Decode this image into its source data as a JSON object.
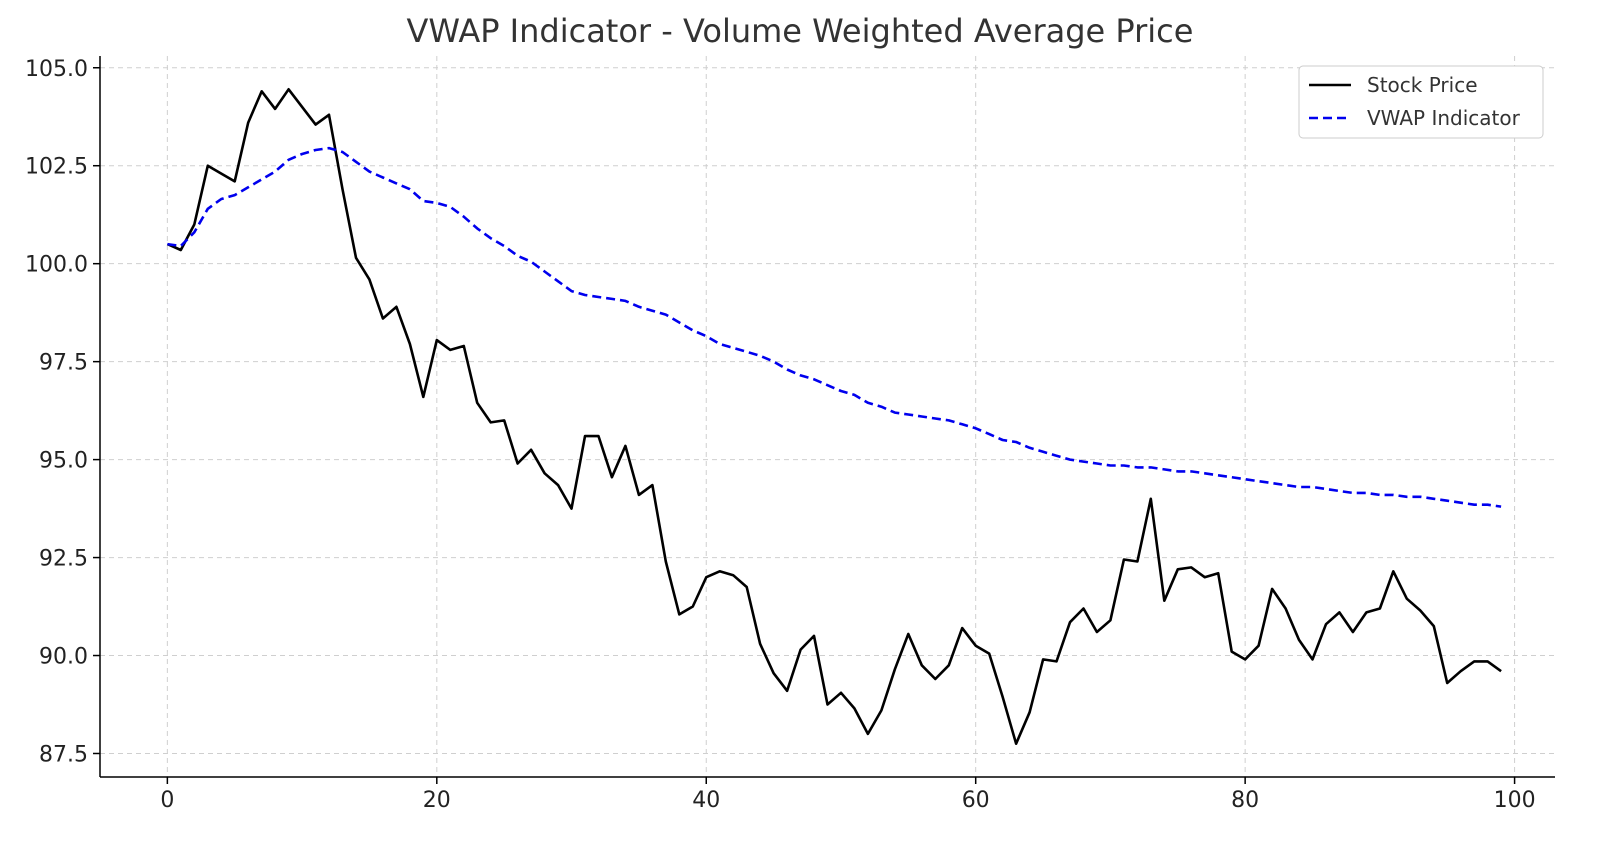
{
  "chart_data": {
    "type": "line",
    "title": "VWAP Indicator - Volume Weighted Average Price",
    "xlabel": "",
    "ylabel": "",
    "xlim": [
      -5,
      103
    ],
    "ylim": [
      86.9,
      105.3
    ],
    "x_ticks": [
      0,
      20,
      40,
      60,
      80,
      100
    ],
    "y_ticks": [
      87.5,
      90.0,
      92.5,
      95.0,
      97.5,
      100.0,
      102.5,
      105.0
    ],
    "grid": true,
    "legend_position": "top-right",
    "x": [
      0,
      1,
      2,
      3,
      4,
      5,
      6,
      7,
      8,
      9,
      10,
      11,
      12,
      13,
      14,
      15,
      16,
      17,
      18,
      19,
      20,
      21,
      22,
      23,
      24,
      25,
      26,
      27,
      28,
      29,
      30,
      31,
      32,
      33,
      34,
      35,
      36,
      37,
      38,
      39,
      40,
      41,
      42,
      43,
      44,
      45,
      46,
      47,
      48,
      49,
      50,
      51,
      52,
      53,
      54,
      55,
      56,
      57,
      58,
      59,
      60,
      61,
      62,
      63,
      64,
      65,
      66,
      67,
      68,
      69,
      70,
      71,
      72,
      73,
      74,
      75,
      76,
      77,
      78,
      79,
      80,
      81,
      82,
      83,
      84,
      85,
      86,
      87,
      88,
      89,
      90,
      91,
      92,
      93,
      94,
      95,
      96,
      97,
      98,
      99
    ],
    "series": [
      {
        "name": "Stock Price",
        "color": "#000000",
        "style": "solid",
        "values": [
          100.5,
          100.35,
          101.0,
          102.5,
          102.3,
          102.1,
          103.6,
          104.4,
          103.95,
          104.45,
          104.0,
          103.55,
          103.8,
          101.9,
          100.15,
          99.6,
          98.6,
          98.9,
          97.95,
          96.6,
          98.05,
          97.8,
          97.9,
          96.45,
          95.95,
          96.0,
          94.9,
          95.25,
          94.65,
          94.35,
          93.75,
          95.6,
          95.6,
          94.55,
          95.35,
          94.1,
          94.35,
          92.4,
          91.05,
          91.25,
          92.0,
          92.15,
          92.05,
          91.75,
          90.3,
          89.55,
          89.1,
          90.15,
          90.5,
          88.75,
          89.05,
          88.65,
          88.0,
          88.6,
          89.65,
          90.55,
          89.75,
          89.4,
          89.75,
          90.7,
          90.25,
          90.05,
          88.95,
          87.75,
          88.55,
          89.9,
          89.85,
          90.85,
          91.2,
          90.6,
          90.9,
          92.45,
          92.4,
          94.0,
          91.4,
          92.2,
          92.25,
          92.0,
          92.1,
          90.1,
          89.9,
          90.25,
          91.7,
          91.2,
          90.4,
          89.9,
          90.8,
          91.1,
          90.6,
          91.1,
          91.2,
          92.15,
          91.45,
          91.15,
          90.75,
          89.3,
          89.6,
          89.85,
          89.85,
          89.6
        ]
      },
      {
        "name": "VWAP Indicator",
        "color": "#0000ee",
        "style": "dashed",
        "values": [
          100.5,
          100.45,
          100.8,
          101.4,
          101.65,
          101.75,
          101.95,
          102.15,
          102.35,
          102.65,
          102.8,
          102.9,
          102.95,
          102.85,
          102.6,
          102.35,
          102.2,
          102.05,
          101.9,
          101.6,
          101.55,
          101.45,
          101.2,
          100.9,
          100.65,
          100.45,
          100.2,
          100.05,
          99.8,
          99.55,
          99.3,
          99.2,
          99.15,
          99.1,
          99.05,
          98.9,
          98.8,
          98.7,
          98.5,
          98.3,
          98.15,
          97.95,
          97.85,
          97.75,
          97.65,
          97.5,
          97.3,
          97.15,
          97.05,
          96.9,
          96.75,
          96.65,
          96.45,
          96.35,
          96.2,
          96.15,
          96.1,
          96.05,
          96.0,
          95.9,
          95.8,
          95.65,
          95.5,
          95.45,
          95.3,
          95.2,
          95.1,
          95.0,
          94.95,
          94.9,
          94.85,
          94.85,
          94.8,
          94.8,
          94.75,
          94.7,
          94.7,
          94.65,
          94.6,
          94.55,
          94.5,
          94.45,
          94.4,
          94.35,
          94.3,
          94.3,
          94.25,
          94.2,
          94.15,
          94.15,
          94.1,
          94.1,
          94.05,
          94.05,
          94.0,
          93.95,
          93.9,
          93.85,
          93.85,
          93.8
        ]
      }
    ]
  }
}
